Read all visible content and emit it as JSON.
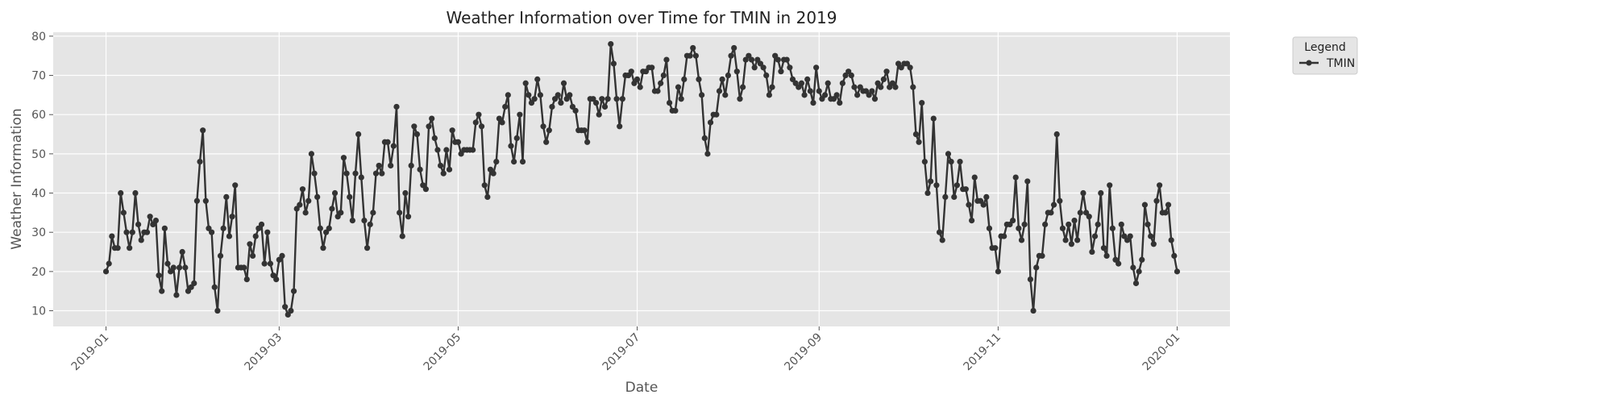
{
  "chart_data": {
    "type": "line",
    "title": "Weather Information over Time for TMIN in 2019",
    "xlabel": "Date",
    "ylabel": "Weather Information",
    "x_ticks": [
      "2019-01",
      "2019-03",
      "2019-05",
      "2019-07",
      "2019-09",
      "2019-11",
      "2020-01"
    ],
    "y_ticks": [
      10,
      20,
      30,
      40,
      50,
      60,
      70,
      80
    ],
    "xlim": [
      "2018-12-14",
      "2020-01-19"
    ],
    "ylim": [
      6,
      81
    ],
    "grid": true,
    "legend": {
      "title": "Legend",
      "placement": "outside-top-right"
    },
    "series": [
      {
        "name": "TMIN",
        "color": "#333333",
        "marker": "circle",
        "start_date": "2019-01-01",
        "frequency": "daily",
        "values": [
          20,
          22,
          29,
          26,
          26,
          40,
          35,
          30,
          26,
          30,
          40,
          32,
          28,
          30,
          30,
          34,
          32,
          33,
          19,
          15,
          31,
          22,
          20,
          21,
          14,
          21,
          25,
          21,
          15,
          16,
          17,
          38,
          48,
          56,
          38,
          31,
          30,
          16,
          10,
          24,
          31,
          39,
          29,
          34,
          42,
          21,
          21,
          21,
          18,
          27,
          24,
          29,
          31,
          32,
          22,
          30,
          22,
          19,
          18,
          23,
          24,
          11,
          9,
          10,
          15,
          36,
          37,
          41,
          35,
          38,
          50,
          45,
          39,
          31,
          26,
          30,
          31,
          36,
          40,
          34,
          35,
          49,
          45,
          39,
          33,
          45,
          55,
          44,
          33,
          26,
          32,
          35,
          45,
          47,
          45,
          53,
          53,
          47,
          52,
          62,
          35,
          29,
          40,
          34,
          47,
          57,
          55,
          46,
          42,
          41,
          57,
          59,
          54,
          51,
          47,
          45,
          51,
          46,
          56,
          53,
          53,
          50,
          51,
          51,
          51,
          51,
          58,
          60,
          57,
          42,
          39,
          46,
          45,
          48,
          59,
          58,
          62,
          65,
          52,
          48,
          54,
          60,
          48,
          68,
          65,
          63,
          64,
          69,
          65,
          57,
          53,
          56,
          62,
          64,
          65,
          63,
          68,
          64,
          65,
          62,
          61,
          56,
          56,
          56,
          53,
          64,
          64,
          63,
          60,
          64,
          62,
          64,
          78,
          73,
          64,
          57,
          64,
          70,
          70,
          71,
          68,
          69,
          67,
          71,
          71,
          72,
          72,
          66,
          66,
          68,
          70,
          74,
          63,
          61,
          61,
          67,
          64,
          69,
          75,
          75,
          77,
          75,
          69,
          65,
          54,
          50,
          58,
          60,
          60,
          66,
          69,
          65,
          70,
          75,
          77,
          71,
          64,
          67,
          74,
          75,
          74,
          72,
          74,
          73,
          72,
          70,
          65,
          67,
          75,
          74,
          71,
          74,
          74,
          72,
          69,
          68,
          67,
          68,
          65,
          69,
          66,
          63,
          72,
          66,
          64,
          65,
          68,
          64,
          64,
          65,
          63,
          68,
          70,
          71,
          70,
          67,
          65,
          67,
          66,
          66,
          65,
          66,
          64,
          68,
          67,
          69,
          71,
          67,
          68,
          67,
          73,
          72,
          73,
          73,
          72,
          67,
          55,
          53,
          63,
          48,
          40,
          43,
          59,
          42,
          30,
          28,
          39,
          50,
          48,
          39,
          42,
          48,
          41,
          41,
          37,
          33,
          44,
          38,
          38,
          37,
          39,
          31,
          26,
          26,
          20,
          29,
          29,
          32,
          32,
          33,
          44,
          31,
          28,
          32,
          43,
          18,
          10,
          21,
          24,
          24,
          32,
          35,
          35,
          37,
          55,
          38,
          31,
          28,
          32,
          27,
          33,
          28,
          35,
          40,
          35,
          34,
          25,
          29,
          32,
          40,
          26,
          24,
          42,
          31,
          23,
          22,
          32,
          29,
          28,
          29,
          21,
          17,
          20,
          23,
          37,
          32,
          29,
          27,
          38,
          42,
          35,
          35,
          37,
          28,
          24,
          20
        ]
      }
    ]
  }
}
